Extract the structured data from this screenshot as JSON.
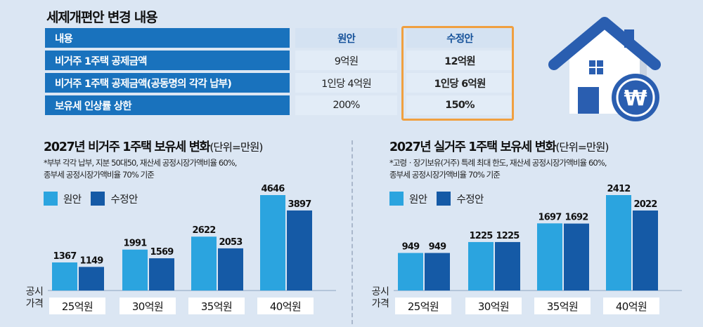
{
  "page_title": "세제개편안 변경 내용",
  "table": {
    "headers": {
      "label": "내용",
      "original": "원안",
      "revised": "수정안"
    },
    "rows": [
      {
        "label": "비거주 1주택 공제금액",
        "original": "9억원",
        "revised": "12억원"
      },
      {
        "label": "비거주 1주택 공제금액(공동명의 각각 납부)",
        "original": "1인당 4억원",
        "revised": "1인당 6억원"
      },
      {
        "label": "보유세 인상률 상한",
        "original": "200%",
        "revised": "150%"
      }
    ]
  },
  "house_icon": {
    "name": "house-icon",
    "badge_symbol": "₩"
  },
  "colors": {
    "original": "#2ba4df",
    "revised": "#155aa6",
    "table_header": "#1972bd",
    "highlight_border": "#f0a040"
  },
  "legend": {
    "original": "원안",
    "revised": "수정안"
  },
  "chart_data": [
    {
      "type": "bar",
      "title": "2027년 비거주 1주택 보유세 변화",
      "unit": "(단위=만원)",
      "note_lines": [
        "*부부 각각 납부, 지분 50대50, 재산세 공정시장가액비율 60%,",
        "종부세 공정시장가액비율 70% 기준"
      ],
      "xlabel_lines": [
        "공시",
        "가격"
      ],
      "categories": [
        "25억원",
        "30억원",
        "35억원",
        "40억원"
      ],
      "series": [
        {
          "name": "원안",
          "values": [
            1367,
            1991,
            2622,
            4646
          ]
        },
        {
          "name": "수정안",
          "values": [
            1149,
            1569,
            2053,
            3897
          ]
        }
      ],
      "ylim": [
        0,
        4646
      ],
      "legend_position": "top-left"
    },
    {
      "type": "bar",
      "title": "2027년 실거주 1주택 보유세 변화",
      "unit": "(단위=만원)",
      "note_lines": [
        "*고령ㆍ장기보유(거주) 특례 최대 한도, 재산세 공정시장가액비율 60%,",
        "종부세 공정시장가액비율 70% 기준"
      ],
      "xlabel_lines": [
        "공시",
        "가격"
      ],
      "categories": [
        "25억원",
        "30억원",
        "35억원",
        "40억원"
      ],
      "series": [
        {
          "name": "원안",
          "values": [
            949,
            1225,
            1697,
            2412
          ]
        },
        {
          "name": "수정안",
          "values": [
            949,
            1225,
            1692,
            2022
          ]
        }
      ],
      "ylim": [
        0,
        2412
      ],
      "legend_position": "top-left"
    }
  ]
}
